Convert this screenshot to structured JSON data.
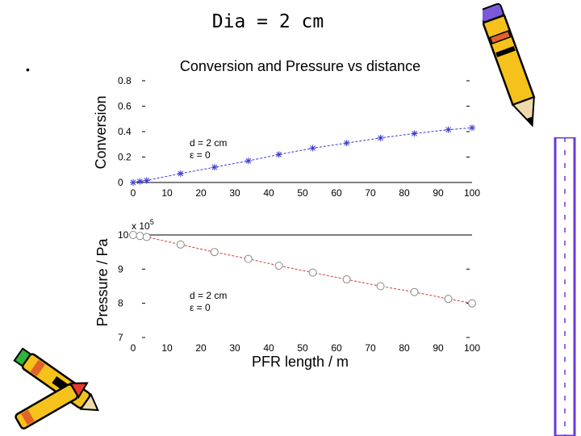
{
  "slide": {
    "title": "Dia = 2 cm",
    "bullet": "•"
  },
  "colors": {
    "conversion_series": "#3a3ad0",
    "pressure_series": "#d03a3a",
    "marker_fill": "#ffffff",
    "axis": "#000000"
  },
  "chart_data": [
    {
      "type": "line",
      "title": "Conversion and Pressure vs distance",
      "xlabel": "",
      "ylabel": "Conversion",
      "xlim": [
        0,
        100
      ],
      "ylim": [
        0,
        0.8
      ],
      "xticks": [
        "0",
        "10",
        "20",
        "30",
        "40",
        "50",
        "60",
        "70",
        "80",
        "90",
        "100"
      ],
      "yticks": [
        "0",
        "0.2",
        "0.4",
        "0.6",
        "0.8"
      ],
      "yticks_values": [
        0,
        0.2,
        0.4,
        0.6,
        0.8
      ],
      "xticks_values": [
        0,
        10,
        20,
        30,
        40,
        50,
        60,
        70,
        80,
        90,
        100
      ],
      "grid": false,
      "marker": "asterisk",
      "annotation": {
        "lines": [
          "d = 2 cm",
          "ε = 0"
        ]
      },
      "series": [
        {
          "x": [
            0,
            2,
            4,
            14,
            24,
            34,
            43,
            53,
            63,
            73,
            83,
            93,
            100
          ],
          "y": [
            0,
            0.008,
            0.016,
            0.07,
            0.12,
            0.17,
            0.22,
            0.27,
            0.31,
            0.35,
            0.385,
            0.415,
            0.43
          ]
        }
      ]
    },
    {
      "type": "line",
      "title": "",
      "xlabel": "PFR length / m",
      "ylabel": "Pressure / Pa",
      "scale_label": "x 10",
      "scale_exponent": "5",
      "xlim": [
        0,
        100
      ],
      "ylim": [
        7,
        10
      ],
      "xticks": [
        "0",
        "10",
        "20",
        "30",
        "40",
        "50",
        "60",
        "70",
        "80",
        "90",
        "100"
      ],
      "yticks": [
        "7",
        "8",
        "9",
        "10"
      ],
      "yticks_values": [
        7,
        8,
        9,
        10
      ],
      "xticks_values": [
        0,
        10,
        20,
        30,
        40,
        50,
        60,
        70,
        80,
        90,
        100
      ],
      "grid": false,
      "marker": "circle",
      "annotation": {
        "lines": [
          "d = 2 cm",
          "ε = 0"
        ]
      },
      "series": [
        {
          "x": [
            0,
            2,
            4,
            14,
            24,
            34,
            43,
            53,
            63,
            73,
            83,
            93,
            100
          ],
          "y": [
            10.0,
            9.97,
            9.94,
            9.72,
            9.5,
            9.3,
            9.1,
            8.9,
            8.7,
            8.5,
            8.33,
            8.13,
            8.0
          ]
        }
      ]
    }
  ]
}
